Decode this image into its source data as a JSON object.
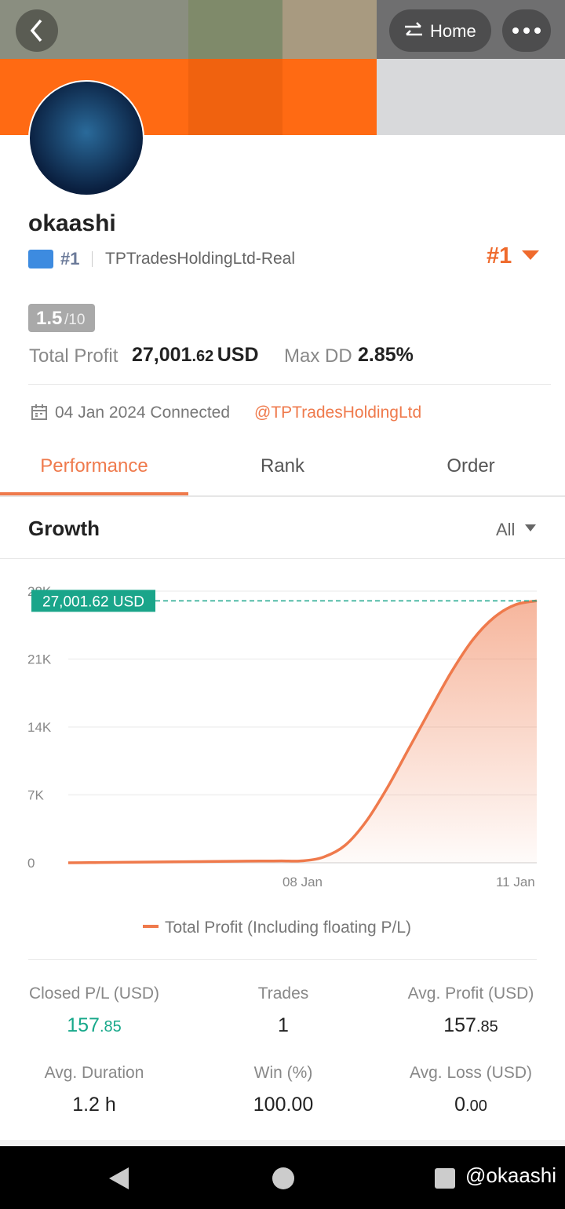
{
  "header": {
    "home": "Home"
  },
  "profile": {
    "name": "okaashi",
    "rank": "#1",
    "broker": "TPTradesHoldingLtd-Real",
    "rank_right": "#1",
    "score": "1.5",
    "score_max": "/10",
    "total_profit_label": "Total Profit",
    "total_profit_int": "27,001",
    "total_profit_dec": ".62",
    "total_profit_unit": "USD",
    "max_dd_label": "Max DD",
    "max_dd": "2.85%",
    "connected": "04 Jan 2024 Connected",
    "link": "@TPTradesHoldingLtd"
  },
  "tabs": [
    "Performance",
    "Rank",
    "Order"
  ],
  "growth": {
    "title": "Growth",
    "filter": "All"
  },
  "chart_data": {
    "type": "line",
    "categories": [
      null,
      null,
      null,
      null,
      null,
      null,
      null,
      null,
      null,
      null,
      null,
      "08 Jan",
      null,
      null,
      null,
      null,
      null,
      null,
      null,
      null,
      null,
      "11 Jan",
      null
    ],
    "series": [
      {
        "name": "Total Profit (Including floating P/L)",
        "color": "#ef7a4c",
        "values": [
          0,
          20,
          40,
          60,
          80,
          100,
          120,
          140,
          160,
          180,
          190,
          200,
          600,
          1800,
          4300,
          7800,
          11800,
          15800,
          19700,
          23000,
          25300,
          26600,
          27001.62
        ],
        "value_labels": [
          null,
          null,
          null,
          null,
          null,
          null,
          null,
          null,
          null,
          null,
          null,
          null,
          null,
          null,
          null,
          null,
          null,
          null,
          null,
          null,
          null,
          null,
          "27,001.62 USD"
        ]
      }
    ],
    "ylim": [
      0,
      28000
    ],
    "yticks": [
      0,
      {
        "value": 7000,
        "label": "7K"
      },
      {
        "value": 14000,
        "label": "14K"
      },
      {
        "value": 21000,
        "label": "21K"
      },
      {
        "value": 28000,
        "label": "28K"
      }
    ],
    "grid": true
  },
  "stats": [
    {
      "label": "Closed P/L (USD)",
      "int": "157",
      "dec": ".85"
    },
    {
      "label": "Trades",
      "int": "1",
      "dec": null
    },
    {
      "label": "Avg. Profit (USD)",
      "int": "157",
      "dec": ".85"
    },
    {
      "label": "Avg. Duration",
      "int": "1.2 h",
      "dec": null
    },
    {
      "label": "Win (%)",
      "int": "100.00",
      "dec": null
    },
    {
      "label": "Avg. Loss (USD)",
      "int": "0",
      "dec": ".00"
    }
  ],
  "watermark": "@okaashi"
}
